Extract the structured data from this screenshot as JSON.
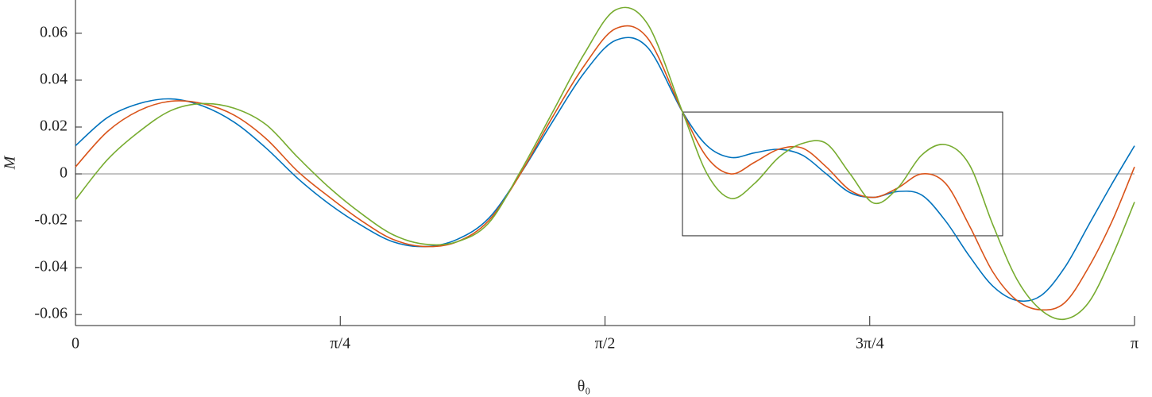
{
  "chart_data": {
    "type": "line",
    "xlabel": "θ₀",
    "ylabel": "M",
    "x": [
      0,
      0.0943,
      0.1885,
      0.2828,
      0.3771,
      0.4714,
      0.5656,
      0.6599,
      0.7542,
      0.8485,
      0.9427,
      1.037,
      1.1313,
      1.2255,
      1.3198,
      1.4141,
      1.5084,
      1.6026,
      1.6969,
      1.8006,
      1.8737,
      1.9444,
      2.0151,
      2.0858,
      2.1565,
      2.2272,
      2.2979,
      2.3686,
      2.4393,
      2.51,
      2.5807,
      2.6514,
      2.7221,
      2.7928,
      2.8635,
      2.9342,
      3.0049,
      3.0756,
      3.1416
    ],
    "series": [
      {
        "color": "#0072BD",
        "values": [
          0.012,
          0.024,
          0.03,
          0.032,
          0.029,
          0.022,
          0.011,
          -0.002,
          -0.013,
          -0.022,
          -0.029,
          -0.031,
          -0.028,
          -0.019,
          0.0,
          0.022,
          0.043,
          0.057,
          0.054,
          0.0265,
          0.012,
          0.007,
          0.009,
          0.0105,
          0.008,
          0.0,
          -0.008,
          -0.01,
          -0.0075,
          -0.009,
          -0.02,
          -0.035,
          -0.048,
          -0.054,
          -0.052,
          -0.04,
          -0.022,
          -0.004,
          0.012
        ]
      },
      {
        "color": "#D95319",
        "values": [
          0.003,
          0.018,
          0.027,
          0.031,
          0.03,
          0.025,
          0.015,
          0.001,
          -0.01,
          -0.02,
          -0.028,
          -0.031,
          -0.029,
          -0.02,
          0.0,
          0.024,
          0.046,
          0.062,
          0.058,
          0.0265,
          0.007,
          0.0,
          0.005,
          0.0105,
          0.011,
          0.003,
          -0.007,
          -0.01,
          -0.006,
          0.0,
          -0.004,
          -0.022,
          -0.042,
          -0.054,
          -0.058,
          -0.055,
          -0.04,
          -0.02,
          0.003
        ]
      },
      {
        "color": "#77AC30",
        "values": [
          -0.011,
          0.006,
          0.018,
          0.027,
          0.03,
          0.028,
          0.021,
          0.007,
          -0.006,
          -0.017,
          -0.026,
          -0.03,
          -0.029,
          -0.021,
          0.001,
          0.026,
          0.051,
          0.07,
          0.064,
          0.0265,
          0.0,
          -0.0105,
          -0.004,
          0.007,
          0.013,
          0.013,
          0.0,
          -0.0125,
          -0.006,
          0.008,
          0.0125,
          0.004,
          -0.022,
          -0.045,
          -0.058,
          -0.062,
          -0.055,
          -0.035,
          -0.012
        ]
      }
    ],
    "xlim": [
      0,
      3.1416
    ],
    "xticks": [
      0,
      {
        "value": 0.7854,
        "label": "π/4"
      },
      {
        "value": 1.5708,
        "label": "π/2"
      },
      {
        "value": 2.3562,
        "label": "3π/4"
      },
      {
        "value": 3.1416,
        "label": "π"
      }
    ],
    "ylim": [
      -0.0647,
      0.0742
    ],
    "yticks": [
      -0.06,
      -0.04,
      -0.02,
      0,
      0.02,
      0.04,
      0.06
    ],
    "highlight_box": {
      "xlim": [
        1.8006,
        2.7504
      ],
      "ylim": [
        -0.0264,
        0.0264
      ]
    }
  }
}
